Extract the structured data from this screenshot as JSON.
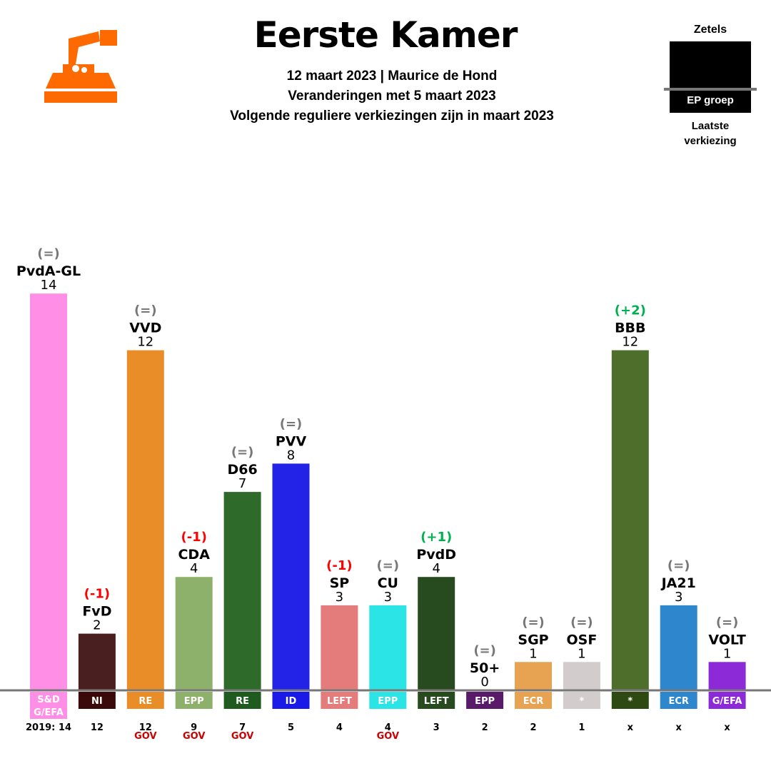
{
  "header": {
    "title": "Eerste Kamer",
    "line1": "12 maart 2023 | Maurice de Hond",
    "line2": "Veranderingen met 5 maart 2023",
    "line3": "Volgende reguliere verkiezingen zijn in maart 2023"
  },
  "legend": {
    "top_label": "Zetels",
    "group_label": "EP groep",
    "bottom_label_1": "Laatste",
    "bottom_label_2": "verkiezing"
  },
  "logo_icon": "ballot-box-icon",
  "colors": {
    "logo": "#ff6a00",
    "increase": "#00b050",
    "decrease": "#ff0000",
    "unchanged": "#777777",
    "gov": "#cc0000",
    "baseline": "#777777"
  },
  "chart_data": {
    "type": "bar",
    "categories": [
      "PvdA-GL",
      "FvD",
      "VVD",
      "CDA",
      "D66",
      "PVV",
      "SP",
      "CU",
      "PvdD",
      "50+",
      "SGP",
      "OSF",
      "BBB",
      "JA21",
      "VOLT"
    ],
    "values": [
      14,
      2,
      12,
      4,
      7,
      8,
      3,
      3,
      4,
      0,
      1,
      1,
      12,
      3,
      1
    ],
    "changes": [
      "(=)",
      "(-1)",
      "(=)",
      "(-1)",
      "(=)",
      "(=)",
      "(-1)",
      "(=)",
      "(+1)",
      "(=)",
      "(=)",
      "(=)",
      "(+2)",
      "(=)",
      "(=)"
    ],
    "ep_groups": [
      "S&D G/EFA",
      "NI",
      "RE",
      "EPP",
      "RE",
      "ID",
      "LEFT",
      "EPP",
      "LEFT",
      "EPP",
      "ECR",
      "*",
      "*",
      "ECR",
      "G/EFA"
    ],
    "last_election": [
      "2019: 14",
      "12",
      "12",
      "9",
      "7",
      "5",
      "4",
      "4",
      "3",
      "2",
      "2",
      "1",
      "x",
      "x",
      "x"
    ],
    "gov": [
      "",
      "",
      "GOV",
      "GOV",
      "GOV",
      "",
      "",
      "GOV",
      "",
      "",
      "",
      "",
      "",
      "",
      ""
    ],
    "bar_colors": [
      "#ff8fe6",
      "#4a1f1f",
      "#e88d27",
      "#8db06a",
      "#2e6a2a",
      "#2323e8",
      "#e57c7c",
      "#2ae4e6",
      "#284a1f",
      "#ffffff",
      "#e8a352",
      "#d2cccc",
      "#4e6e2c",
      "#2e86cc",
      "#8b2ad6"
    ],
    "group_colors": [
      "#ff8fe6",
      "#3a0a0a",
      "#e88d27",
      "#8db06a",
      "#1f5a1f",
      "#1a1ae8",
      "#e57c7c",
      "#2ae4e6",
      "#284a1f",
      "#5a1a6a",
      "#e8a352",
      "#d2cccc",
      "#2e4a12",
      "#2e86cc",
      "#8b2ad6"
    ],
    "ylim": [
      0,
      14
    ]
  }
}
